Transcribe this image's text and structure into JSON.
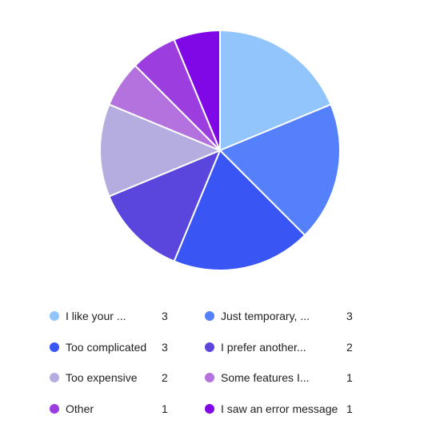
{
  "chart_data": {
    "type": "pie",
    "categories": [
      "I like your ...",
      "Just temporary, ...",
      "Too complicated",
      "I prefer another...",
      "Too expensive",
      "Some features I...",
      "Other",
      "I saw an error message"
    ],
    "values": [
      3,
      3,
      3,
      2,
      2,
      1,
      1,
      1
    ],
    "colors": [
      "#93c5fd",
      "#5580fb",
      "#3956f5",
      "#5b46dd",
      "#b5acdf",
      "#b472de",
      "#9b3ddf",
      "#8108e6"
    ],
    "legend_position": "bottom"
  }
}
